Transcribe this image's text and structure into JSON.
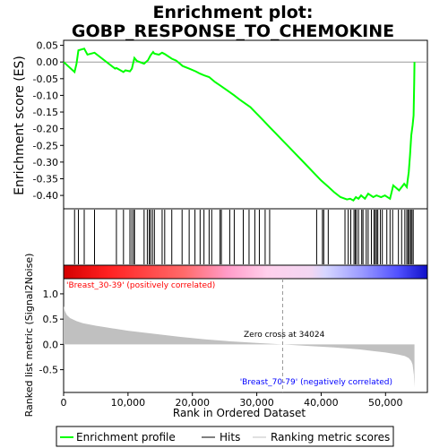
{
  "chart_data": {
    "type": "line",
    "title_line1": "Enrichment plot:",
    "title_line2": "GOBP_RESPONSE_TO_CHEMOKINE",
    "es_panel": {
      "ylabel": "Enrichment score (ES)",
      "ylim": [
        -0.44,
        0.065
      ],
      "yticks": [
        0.05,
        0.0,
        -0.05,
        -0.1,
        -0.15,
        -0.2,
        -0.25,
        -0.3,
        -0.35,
        -0.4
      ],
      "ytick_labels": [
        "0.05",
        "0.00",
        "-0.05",
        "-0.10",
        "-0.15",
        "-0.20",
        "-0.25",
        "-0.30",
        "-0.35",
        "-0.40"
      ],
      "line_color": "#00ff00",
      "x": [
        0,
        1700,
        2000,
        2300,
        3200,
        3700,
        4800,
        8000,
        8200,
        9300,
        9600,
        10300,
        10600,
        11000,
        11400,
        12500,
        13100,
        13500,
        13900,
        14100,
        14800,
        15300,
        15700,
        16800,
        17500,
        18500,
        19500,
        20500,
        21200,
        21800,
        22600,
        23500,
        24300,
        25400,
        26500,
        27500,
        29000,
        30000,
        31000,
        32000,
        33000,
        34000,
        35000,
        36000,
        37000,
        38000,
        39000,
        40000,
        41000,
        42000,
        43000,
        44000,
        44500,
        45000,
        45400,
        45800,
        46200,
        46800,
        47300,
        48100,
        48600,
        49300,
        49900,
        50700,
        51200,
        52100,
        52900,
        53300,
        53600,
        53800,
        54000,
        54200,
        54350,
        54450,
        54500
      ],
      "y": [
        0.0,
        -0.03,
        -0.005,
        0.035,
        0.04,
        0.022,
        0.028,
        -0.02,
        -0.018,
        -0.03,
        -0.025,
        -0.028,
        -0.02,
        0.012,
        0.003,
        -0.005,
        0.005,
        0.02,
        0.03,
        0.025,
        0.022,
        0.028,
        0.024,
        0.01,
        0.004,
        -0.012,
        -0.02,
        -0.028,
        -0.035,
        -0.04,
        -0.045,
        -0.06,
        -0.07,
        -0.085,
        -0.1,
        -0.115,
        -0.135,
        -0.155,
        -0.175,
        -0.195,
        -0.215,
        -0.235,
        -0.255,
        -0.275,
        -0.295,
        -0.315,
        -0.335,
        -0.355,
        -0.372,
        -0.39,
        -0.405,
        -0.412,
        -0.41,
        -0.415,
        -0.405,
        -0.41,
        -0.4,
        -0.41,
        -0.395,
        -0.405,
        -0.4,
        -0.405,
        -0.4,
        -0.41,
        -0.37,
        -0.385,
        -0.365,
        -0.375,
        -0.33,
        -0.28,
        -0.22,
        -0.19,
        -0.16,
        -0.06,
        0.0
      ]
    },
    "hits": {
      "x": [
        1700,
        2300,
        3200,
        4800,
        8200,
        9300,
        10300,
        10600,
        10900,
        11000,
        12500,
        13000,
        13300,
        13500,
        13800,
        14100,
        15300,
        15700,
        16800,
        18400,
        19500,
        20400,
        21200,
        21800,
        22600,
        23000,
        24300,
        24500,
        25800,
        26500,
        27900,
        28800,
        29700,
        30400,
        31300,
        32000,
        39300,
        40200,
        40400,
        41100,
        43700,
        44200,
        44600,
        45100,
        45300,
        45500,
        45800,
        46300,
        46500,
        47000,
        47300,
        47800,
        48200,
        48400,
        48600,
        48800,
        49200,
        49500,
        50200,
        50700,
        51100,
        52000,
        52500,
        53000,
        53300,
        53500,
        53700,
        53900,
        54100,
        54300
      ]
    },
    "metric_panel": {
      "ylabel": "Ranked list metric (Signal2Noise)",
      "ylim": [
        -0.95,
        1.3
      ],
      "yticks": [
        1.0,
        0.5,
        0.0,
        -0.5
      ],
      "ytick_labels": [
        "1.0",
        "0.5",
        "0.0",
        "-0.5"
      ],
      "curve_x": [
        0,
        200,
        500,
        1000,
        2000,
        3000,
        5000,
        8000,
        10000,
        14000,
        18000,
        22000,
        26000,
        30000,
        34024,
        38000,
        42000,
        46000,
        48000,
        50000,
        52000,
        53000,
        53600,
        54000,
        54200,
        54400,
        54500
      ],
      "curve_y": [
        0.76,
        0.66,
        0.58,
        0.52,
        0.46,
        0.42,
        0.37,
        0.31,
        0.27,
        0.21,
        0.15,
        0.1,
        0.06,
        0.03,
        0.0,
        -0.03,
        -0.06,
        -0.1,
        -0.13,
        -0.16,
        -0.2,
        -0.23,
        -0.27,
        -0.33,
        -0.4,
        -0.6,
        -0.85
      ],
      "zero_cross_label": "Zero cross at 34024",
      "zero_cross_x": 34024,
      "pos_label": "'Breast_30-39' (positively correlated)",
      "neg_label": "'Breast_70-79' (negatively correlated)"
    },
    "xlabel": "Rank in Ordered Dataset",
    "xlim": [
      0,
      56500
    ],
    "xticks": [
      0,
      10000,
      20000,
      30000,
      40000,
      50000
    ],
    "xtick_labels": [
      "0",
      "10,000",
      "20,000",
      "30,000",
      "40,000",
      "50,000"
    ],
    "colors": {
      "es_line": "#00ff00",
      "positive_band": "#ff0000",
      "negative_band": "#0000ff",
      "pos_text": "#ff0000",
      "neg_text": "#0000ff",
      "metric_fill": "#c0c0c0"
    },
    "legend": {
      "items": [
        "Enrichment profile",
        "Hits",
        "Ranking metric scores"
      ],
      "placement": "bottom"
    }
  }
}
